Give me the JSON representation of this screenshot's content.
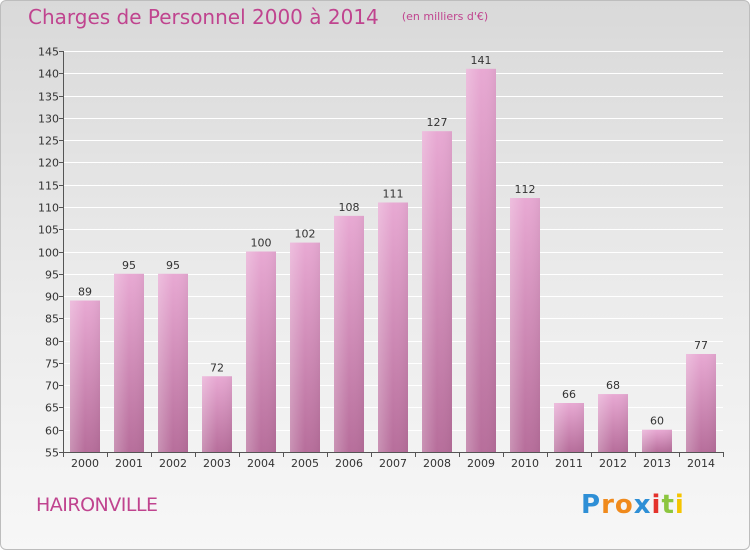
{
  "header": {
    "title": "Charges de Personnel 2000 à 2014",
    "subtitle": "(en milliers d'€)"
  },
  "footer": {
    "commune": "HAIRONVILLE",
    "logo_text": "Proxiti"
  },
  "colors": {
    "title": "#c0448f",
    "bar_light": "#e8a9d3",
    "bar_dark": "#b76e9b",
    "axis": "#555555",
    "grid": "#ffffff"
  },
  "chart_data": {
    "type": "bar",
    "title": "Charges de Personnel 2000 à 2014",
    "subtitle": "(en milliers d'€)",
    "categories": [
      "2000",
      "2001",
      "2002",
      "2003",
      "2004",
      "2005",
      "2006",
      "2007",
      "2008",
      "2009",
      "2010",
      "2011",
      "2012",
      "2013",
      "2014"
    ],
    "values": [
      89,
      95,
      95,
      72,
      100,
      102,
      108,
      111,
      127,
      141,
      112,
      66,
      68,
      60,
      77
    ],
    "ylim": [
      55,
      145
    ],
    "yticks": [
      55,
      60,
      65,
      70,
      75,
      80,
      85,
      90,
      95,
      100,
      105,
      110,
      115,
      120,
      125,
      130,
      135,
      140,
      145
    ],
    "grid": true,
    "data_labels": true
  }
}
